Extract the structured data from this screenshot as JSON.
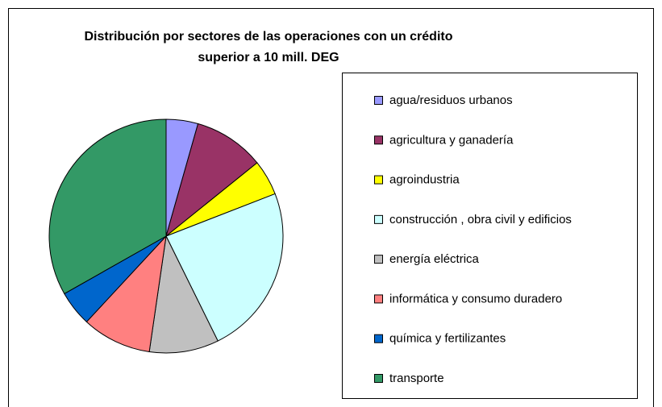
{
  "chart_data": {
    "type": "pie",
    "title": [
      "Distribución por sectores de las operaciones con un crédito",
      "superior a 10 mill. DEG"
    ],
    "categories": [
      "agua/residuos urbanos",
      "agricultura y ganadería",
      "agroindustria",
      "construcción , obra civil y edificios",
      "energía eléctrica",
      "informática y consumo duradero",
      "química y fertilizantes",
      "transporte"
    ],
    "values": [
      4.4,
      9.8,
      4.9,
      23.6,
      9.6,
      9.6,
      4.9,
      33.2
    ],
    "colors": [
      "#9999ff",
      "#993366",
      "#ffff00",
      "#ccffff",
      "#c0c0c0",
      "#ff8080",
      "#0066cc",
      "#339966"
    ],
    "legend": "right"
  }
}
